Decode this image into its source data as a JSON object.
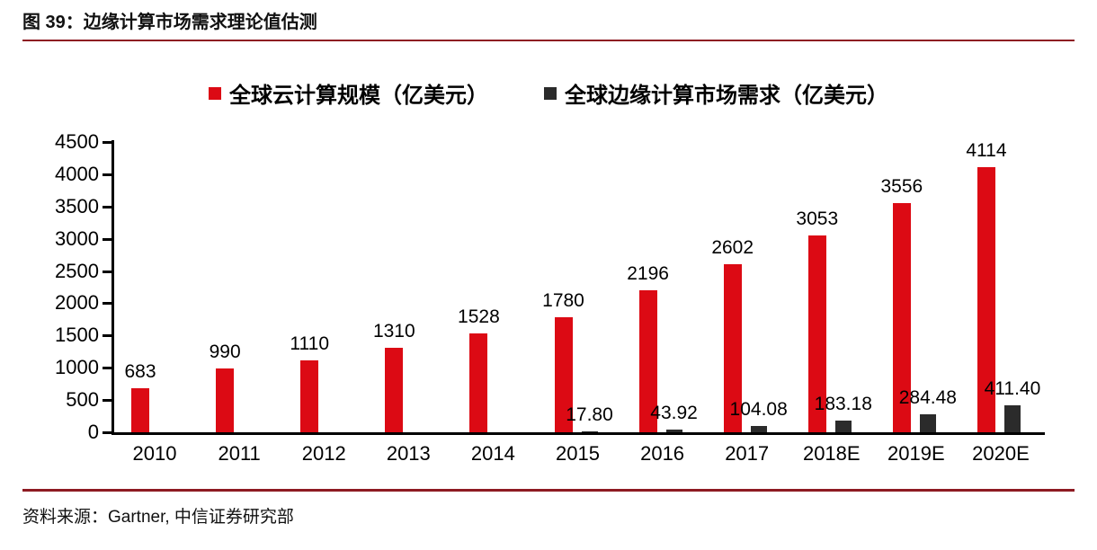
{
  "figure": {
    "title": "图 39：边缘计算市场需求理论值估测",
    "source_label": "资料来源：Gartner, 中信证券研究部"
  },
  "colors": {
    "cloud_series": "#DC0A14",
    "edge_series": "#2B2B2B",
    "separator": "#8E1B22",
    "axis": "#000000"
  },
  "chart_data": {
    "type": "bar",
    "title": "边缘计算市场需求理论值估测",
    "categories": [
      "2010",
      "2011",
      "2012",
      "2013",
      "2014",
      "2015",
      "2016",
      "2017",
      "2018E",
      "2019E",
      "2020E"
    ],
    "series": [
      {
        "name": "全球云计算规模（亿美元）",
        "values": [
          683,
          990,
          1110,
          1310,
          1528,
          1780,
          2196,
          2602,
          3053,
          3556,
          4114
        ],
        "labels": [
          "683",
          "990",
          "1110",
          "1310",
          "1528",
          "1780",
          "2196",
          "2602",
          "3053",
          "3556",
          "4114"
        ]
      },
      {
        "name": "全球边缘计算市场需求（亿美元）",
        "values": [
          null,
          null,
          null,
          null,
          null,
          17.8,
          43.92,
          104.08,
          183.18,
          284.48,
          411.4
        ],
        "labels": [
          "",
          "",
          "",
          "",
          "",
          "17.80",
          "43.92",
          "104.08",
          "183.18",
          "284.48",
          "411.40"
        ]
      }
    ],
    "xlabel": "",
    "ylabel": "",
    "ylim": [
      0,
      4500
    ],
    "yticks": [
      0,
      500,
      1000,
      1500,
      2000,
      2500,
      3000,
      3500,
      4000,
      4500
    ],
    "grid": false,
    "legend_position": "top-center"
  }
}
